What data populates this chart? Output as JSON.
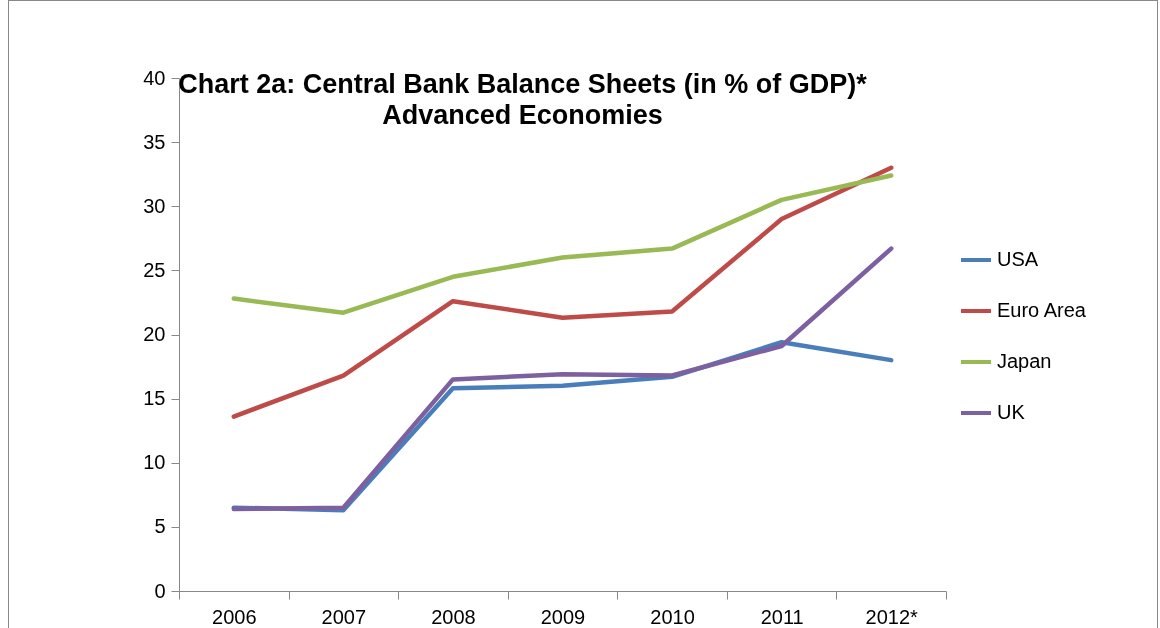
{
  "chart_data": {
    "type": "line",
    "title": "Chart 2a: Central Bank Balance Sheets (in % of GDP)*",
    "subtitle": "Advanced Economies",
    "categories": [
      "2006",
      "2007",
      "2008",
      "2009",
      "2010",
      "2011",
      "2012*"
    ],
    "series": [
      {
        "name": "USA",
        "color": "#4a7ebb",
        "values": [
          6.5,
          6.3,
          15.8,
          16.0,
          16.7,
          19.4,
          18.0
        ]
      },
      {
        "name": "Euro Area",
        "color": "#be4b48",
        "values": [
          13.6,
          16.8,
          22.6,
          21.3,
          21.8,
          29.0,
          33.0
        ]
      },
      {
        "name": "Japan",
        "color": "#98b954",
        "values": [
          22.8,
          21.7,
          24.5,
          26.0,
          26.7,
          30.5,
          32.4
        ]
      },
      {
        "name": "UK",
        "color": "#7d60a0",
        "values": [
          6.4,
          6.5,
          16.5,
          16.9,
          16.8,
          19.1,
          26.7
        ]
      }
    ],
    "ylim": [
      0,
      40
    ],
    "yticks": [
      0,
      5,
      10,
      15,
      20,
      25,
      30,
      35,
      40
    ],
    "grid": false,
    "legend": "right",
    "marker": "none",
    "line_style": "solid"
  }
}
